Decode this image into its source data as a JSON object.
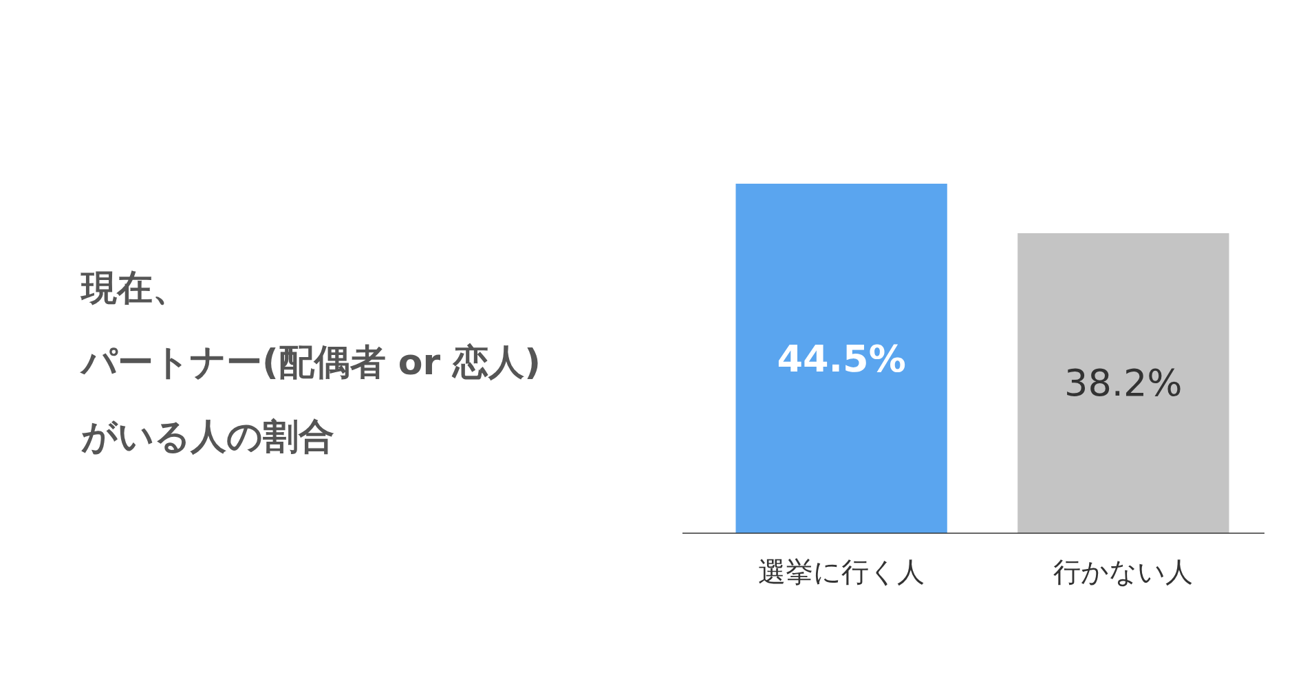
{
  "chart_data": {
    "type": "bar",
    "title": "現在、パートナー(配偶者 or 恋人)がいる人の割合",
    "categories": [
      "選挙に行く人",
      "行かない人"
    ],
    "values": [
      44.5,
      38.2
    ],
    "colors": [
      "#5aa5ef",
      "#c4c4c4"
    ],
    "value_labels": [
      "44.5%",
      "38.2%"
    ]
  }
}
